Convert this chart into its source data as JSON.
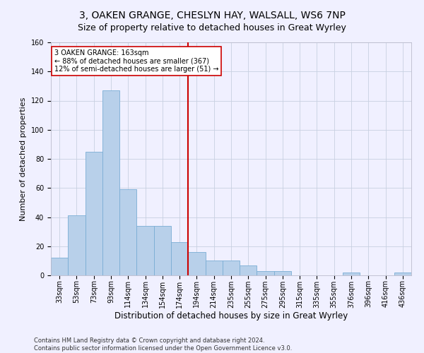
{
  "title": "3, OAKEN GRANGE, CHESLYN HAY, WALSALL, WS6 7NP",
  "subtitle": "Size of property relative to detached houses in Great Wyrley",
  "xlabel": "Distribution of detached houses by size in Great Wyrley",
  "ylabel": "Number of detached properties",
  "categories": [
    "33sqm",
    "53sqm",
    "73sqm",
    "93sqm",
    "114sqm",
    "134sqm",
    "154sqm",
    "174sqm",
    "194sqm",
    "214sqm",
    "235sqm",
    "255sqm",
    "275sqm",
    "295sqm",
    "315sqm",
    "335sqm",
    "355sqm",
    "376sqm",
    "396sqm",
    "416sqm",
    "436sqm"
  ],
  "values": [
    12,
    41,
    85,
    127,
    59,
    34,
    34,
    23,
    16,
    10,
    10,
    7,
    3,
    3,
    0,
    0,
    0,
    2,
    0,
    0,
    2
  ],
  "bar_color": "#b8d0ea",
  "bar_edge_color": "#7aadd4",
  "vline_x": 7.5,
  "vline_color": "#cc0000",
  "annotation_text": "3 OAKEN GRANGE: 163sqm\n← 88% of detached houses are smaller (367)\n12% of semi-detached houses are larger (51) →",
  "annotation_box_color": "#ffffff",
  "annotation_box_edge_color": "#cc0000",
  "ylim": [
    0,
    160
  ],
  "yticks": [
    0,
    20,
    40,
    60,
    80,
    100,
    120,
    140,
    160
  ],
  "grid_color": "#c8d0e0",
  "background_color": "#f0f0ff",
  "footer_text": "Contains HM Land Registry data © Crown copyright and database right 2024.\nContains public sector information licensed under the Open Government Licence v3.0.",
  "title_fontsize": 10,
  "subtitle_fontsize": 9,
  "xlabel_fontsize": 8.5,
  "ylabel_fontsize": 8,
  "tick_fontsize": 7,
  "annotation_fontsize": 7,
  "footer_fontsize": 6
}
